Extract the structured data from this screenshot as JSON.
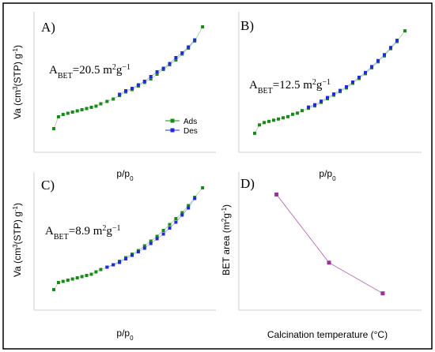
{
  "panels": [
    {
      "type": "scatter",
      "label": "A)",
      "annotation": "A_BET=20.5 m²g⁻¹",
      "annotation_parts": {
        "prefix": "A",
        "sub": "BET",
        "eq": "=20.5 m",
        "sup1": "2",
        "g": "g",
        "sup2": "−1"
      },
      "xlabel": "p/p0",
      "ylabel": "Va (cm3(STP) g-1)",
      "legend": [
        {
          "name": "Ads",
          "color": "#1a8a1a"
        },
        {
          "name": "Des",
          "color": "#1f2bd6"
        }
      ],
      "legend_position": "center-right",
      "xlim": [
        0,
        1
      ],
      "ylim": [
        0,
        1
      ],
      "series": [
        {
          "name": "Ads",
          "color": "#1a8a1a",
          "x": [
            0.02,
            0.05,
            0.08,
            0.11,
            0.14,
            0.17,
            0.2,
            0.23,
            0.26,
            0.29,
            0.32,
            0.36,
            0.4,
            0.44,
            0.48,
            0.52,
            0.56,
            0.6,
            0.64,
            0.68,
            0.72,
            0.76,
            0.8,
            0.84,
            0.88,
            0.92,
            0.97
          ],
          "y": [
            0.1,
            0.2,
            0.22,
            0.23,
            0.24,
            0.25,
            0.26,
            0.27,
            0.28,
            0.29,
            0.31,
            0.33,
            0.35,
            0.38,
            0.41,
            0.43,
            0.46,
            0.49,
            0.52,
            0.56,
            0.6,
            0.64,
            0.68,
            0.73,
            0.78,
            0.84,
            0.96
          ]
        },
        {
          "name": "Des",
          "color": "#1f2bd6",
          "x": [
            0.44,
            0.48,
            0.52,
            0.56,
            0.6,
            0.64,
            0.68,
            0.72,
            0.76,
            0.8,
            0.84,
            0.88,
            0.92
          ],
          "y": [
            0.39,
            0.42,
            0.44,
            0.47,
            0.5,
            0.54,
            0.58,
            0.61,
            0.65,
            0.7,
            0.74,
            0.79,
            0.85
          ]
        }
      ]
    },
    {
      "type": "scatter",
      "label": "B)",
      "annotation": "A_BET=12.5 m²g⁻¹",
      "annotation_parts": {
        "prefix": "A",
        "sub": "BET",
        "eq": "=12.5 m",
        "sup1": "2",
        "g": "g",
        "sup2": "−1"
      },
      "xlabel": "p/p0",
      "xlim": [
        0,
        1
      ],
      "ylim": [
        0,
        1
      ],
      "series": [
        {
          "name": "Ads",
          "color": "#1a8a1a",
          "x": [
            0.02,
            0.05,
            0.08,
            0.11,
            0.14,
            0.17,
            0.2,
            0.23,
            0.26,
            0.29,
            0.32,
            0.36,
            0.4,
            0.44,
            0.48,
            0.52,
            0.56,
            0.6,
            0.64,
            0.68,
            0.72,
            0.76,
            0.8,
            0.84,
            0.88,
            0.92,
            0.97
          ],
          "y": [
            0.08,
            0.15,
            0.17,
            0.18,
            0.19,
            0.2,
            0.21,
            0.22,
            0.24,
            0.25,
            0.27,
            0.29,
            0.31,
            0.34,
            0.37,
            0.4,
            0.43,
            0.46,
            0.5,
            0.54,
            0.58,
            0.63,
            0.68,
            0.73,
            0.79,
            0.85,
            0.94
          ]
        },
        {
          "name": "Des",
          "color": "#1f2bd6",
          "x": [
            0.36,
            0.4,
            0.44,
            0.48,
            0.52,
            0.56,
            0.6,
            0.64,
            0.68,
            0.72,
            0.76,
            0.8,
            0.84,
            0.88,
            0.92
          ],
          "y": [
            0.3,
            0.32,
            0.35,
            0.38,
            0.41,
            0.44,
            0.47,
            0.51,
            0.55,
            0.59,
            0.64,
            0.69,
            0.74,
            0.8,
            0.86
          ]
        }
      ]
    },
    {
      "type": "scatter",
      "label": "C)",
      "annotation": "A_BET=8.9 m²g⁻¹",
      "annotation_parts": {
        "prefix": "A",
        "sub": "BET",
        "eq": "=8.9 m",
        "sup1": "2",
        "g": "g",
        "sup2": "−1"
      },
      "xlabel": "p/p0",
      "ylabel": "Va (cm3(STP) g-1)",
      "xlim": [
        0,
        1
      ],
      "ylim": [
        0,
        1
      ],
      "series": [
        {
          "name": "Ads",
          "color": "#1a8a1a",
          "x": [
            0.02,
            0.05,
            0.08,
            0.11,
            0.14,
            0.17,
            0.2,
            0.23,
            0.26,
            0.29,
            0.32,
            0.36,
            0.4,
            0.44,
            0.48,
            0.52,
            0.56,
            0.6,
            0.64,
            0.68,
            0.72,
            0.76,
            0.8,
            0.84,
            0.88,
            0.92,
            0.97
          ],
          "y": [
            0.08,
            0.14,
            0.15,
            0.16,
            0.17,
            0.18,
            0.19,
            0.2,
            0.21,
            0.23,
            0.25,
            0.27,
            0.29,
            0.32,
            0.35,
            0.38,
            0.41,
            0.45,
            0.49,
            0.53,
            0.58,
            0.63,
            0.68,
            0.73,
            0.79,
            0.86,
            0.94
          ]
        },
        {
          "name": "Des",
          "color": "#1f2bd6",
          "x": [
            0.36,
            0.4,
            0.44,
            0.48,
            0.52,
            0.56,
            0.6,
            0.64,
            0.68,
            0.72,
            0.76,
            0.8,
            0.84,
            0.88,
            0.92
          ],
          "y": [
            0.27,
            0.29,
            0.31,
            0.34,
            0.37,
            0.4,
            0.43,
            0.47,
            0.51,
            0.55,
            0.6,
            0.65,
            0.71,
            0.77,
            0.85
          ]
        }
      ]
    },
    {
      "type": "line",
      "label": "D)",
      "xlabel": "Calcination temperature (°C)",
      "ylabel": "BET area (m2g-1)",
      "xlim": [
        0,
        1
      ],
      "ylim": [
        0,
        1
      ],
      "series": [
        {
          "color": "#9b2f9b",
          "x": [
            0.08,
            0.5,
            0.93
          ],
          "y": [
            0.9,
            0.3,
            0.03
          ]
        }
      ]
    }
  ]
}
